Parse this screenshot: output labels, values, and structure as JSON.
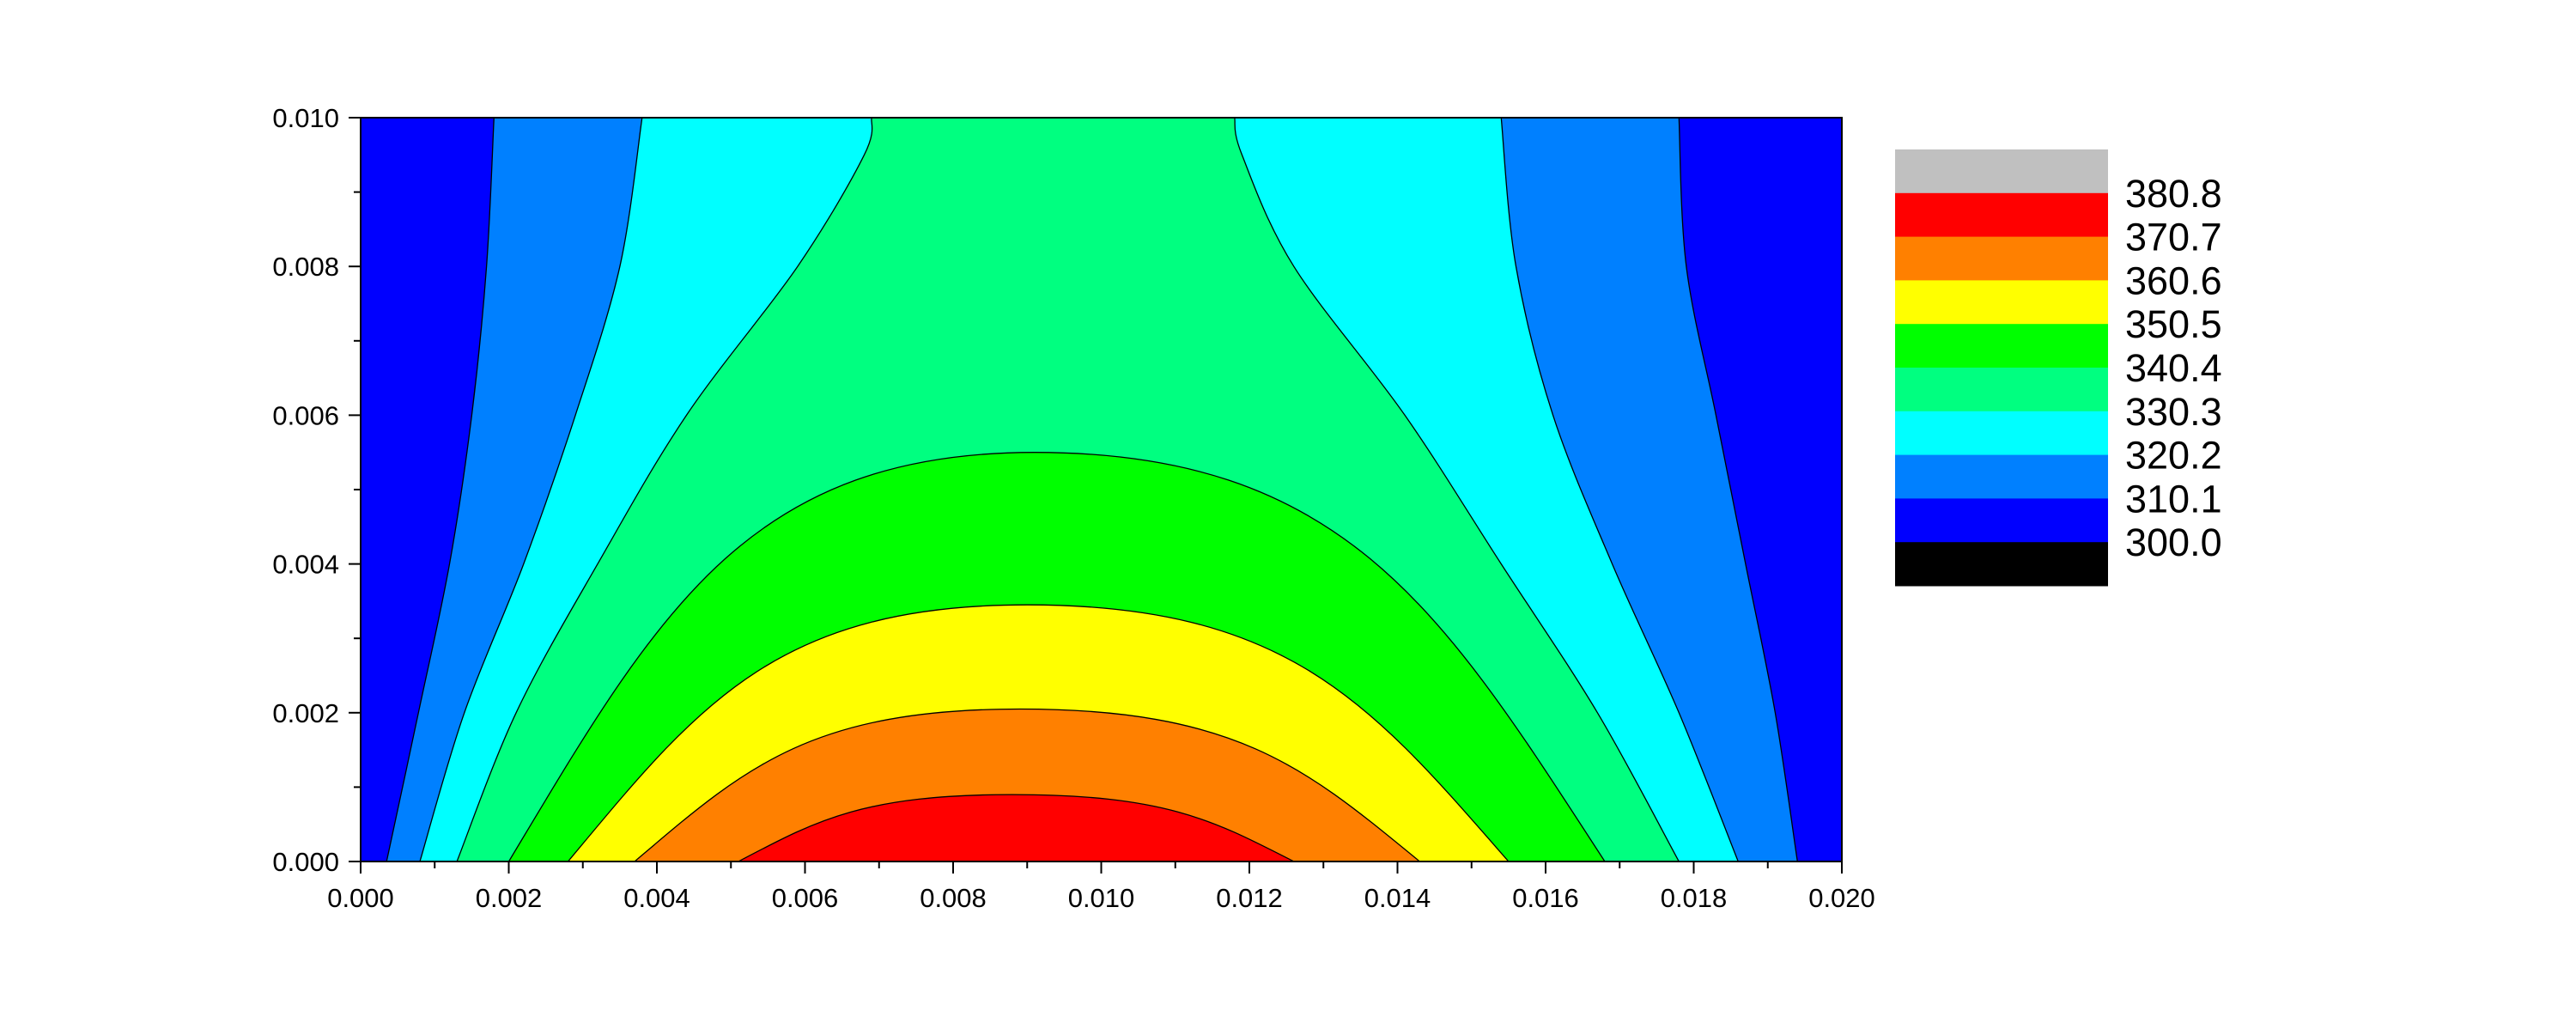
{
  "chart_data": {
    "type": "contour",
    "title": "",
    "xlabel": "",
    "ylabel": "",
    "xlim": [
      0.0,
      0.02
    ],
    "ylim": [
      0.0,
      0.01
    ],
    "x_ticks": [
      "0.000",
      "0.002",
      "0.004",
      "0.006",
      "0.008",
      "0.010",
      "0.012",
      "0.014",
      "0.016",
      "0.018",
      "0.020"
    ],
    "y_ticks": [
      "0.000",
      "0.002",
      "0.004",
      "0.006",
      "0.008",
      "0.010"
    ],
    "legend": {
      "placement": "right",
      "levels": [
        "380.8",
        "370.7",
        "360.6",
        "350.5",
        "340.4",
        "330.3",
        "320.2",
        "310.1",
        "300.0"
      ],
      "colors": [
        "#c0c0c0",
        "#ff0000",
        "#ff8000",
        "#ffff00",
        "#00ff00",
        "#00ff80",
        "#00ffff",
        "#0080ff",
        "#0000ff",
        "#000000"
      ]
    },
    "contour_bands": [
      {
        "level": "310.1",
        "color": "#0080ff",
        "left": [
          [
            0.00035,
            0.0
          ],
          [
            0.00078,
            0.002
          ],
          [
            0.0012,
            0.004
          ],
          [
            0.0015,
            0.006
          ],
          [
            0.0017,
            0.008
          ],
          [
            0.0018,
            0.01
          ]
        ],
        "right": [
          [
            0.0194,
            0.0
          ],
          [
            0.0191,
            0.002
          ],
          [
            0.0187,
            0.004
          ],
          [
            0.0183,
            0.006
          ],
          [
            0.0179,
            0.008
          ],
          [
            0.0178,
            0.01
          ]
        ]
      },
      {
        "level": "320.2",
        "color": "#00ffff",
        "left": [
          [
            0.0008,
            0.0
          ],
          [
            0.0014,
            0.002
          ],
          [
            0.0022,
            0.004
          ],
          [
            0.0029,
            0.006
          ],
          [
            0.0035,
            0.008
          ],
          [
            0.0038,
            0.01
          ]
        ],
        "right": [
          [
            0.0186,
            0.0
          ],
          [
            0.0178,
            0.002
          ],
          [
            0.0169,
            0.004
          ],
          [
            0.0161,
            0.006
          ],
          [
            0.0156,
            0.008
          ],
          [
            0.0154,
            0.01
          ]
        ]
      },
      {
        "level": "330.3",
        "color": "#00ff80",
        "left": [
          [
            0.0013,
            0.0
          ],
          [
            0.0021,
            0.002
          ],
          [
            0.0032,
            0.004
          ],
          [
            0.0044,
            0.006
          ],
          [
            0.0059,
            0.008
          ],
          [
            0.0068,
            0.0095
          ],
          [
            0.0069,
            0.01
          ]
        ],
        "right": [
          [
            0.0178,
            0.0
          ],
          [
            0.0167,
            0.002
          ],
          [
            0.0154,
            0.004
          ],
          [
            0.0141,
            0.006
          ],
          [
            0.0126,
            0.008
          ],
          [
            0.0119,
            0.0095
          ],
          [
            0.0118,
            0.01
          ]
        ]
      }
    ],
    "contour_domes": [
      {
        "level": "340.4",
        "color": "#00ff00",
        "x_left": 0.002,
        "x_right": 0.0168,
        "x_peak": 0.0091,
        "y_peak": 0.0055
      },
      {
        "level": "350.5",
        "color": "#ffff00",
        "x_left": 0.0028,
        "x_right": 0.0155,
        "x_peak": 0.009,
        "y_peak": 0.00345
      },
      {
        "level": "360.6",
        "color": "#ff8000",
        "x_left": 0.0037,
        "x_right": 0.0143,
        "x_peak": 0.0089,
        "y_peak": 0.00205
      },
      {
        "level": "370.7",
        "color": "#ff0000",
        "x_left": 0.0051,
        "x_right": 0.0126,
        "x_peak": 0.0088,
        "y_peak": 0.0009
      }
    ]
  }
}
